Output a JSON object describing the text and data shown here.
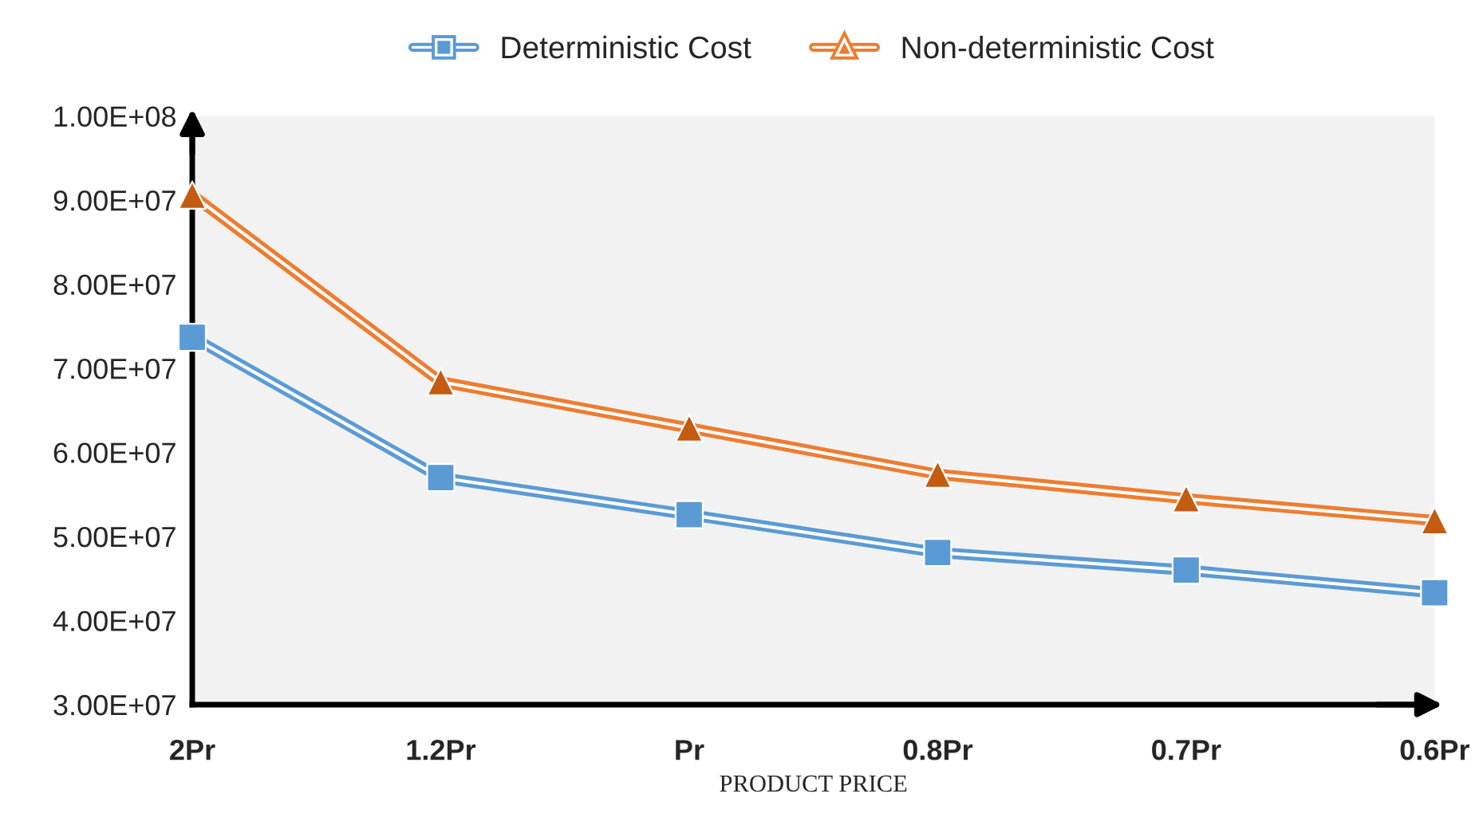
{
  "chart_data": {
    "type": "line",
    "xlabel": "PRODUCT PRICE",
    "categories": [
      "2Pr",
      "1.2Pr",
      "Pr",
      "0.8Pr",
      "0.7Pr",
      "0.6Pr"
    ],
    "series": [
      {
        "name": "Deterministic Cost",
        "color": "#5b9bd5",
        "marker": "square",
        "values": [
          73700000,
          57000000,
          52600000,
          48100000,
          46000000,
          43300000
        ]
      },
      {
        "name": "Non-deterministic Cost",
        "color": "#ed7d31",
        "marker": "triangle",
        "values": [
          90600000,
          68400000,
          62900000,
          57400000,
          54500000,
          51900000
        ]
      }
    ],
    "ylim": [
      30000000,
      100000000
    ],
    "yticks": [
      {
        "value": 30000000,
        "label": "3.00E+07"
      },
      {
        "value": 40000000,
        "label": "4.00E+07"
      },
      {
        "value": 50000000,
        "label": "5.00E+07"
      },
      {
        "value": 60000000,
        "label": "6.00E+07"
      },
      {
        "value": 70000000,
        "label": "7.00E+07"
      },
      {
        "value": 80000000,
        "label": "8.00E+07"
      },
      {
        "value": 90000000,
        "label": "9.00E+07"
      },
      {
        "value": 100000000,
        "label": "1.00E+08"
      }
    ],
    "grid": false,
    "legend": "top"
  }
}
